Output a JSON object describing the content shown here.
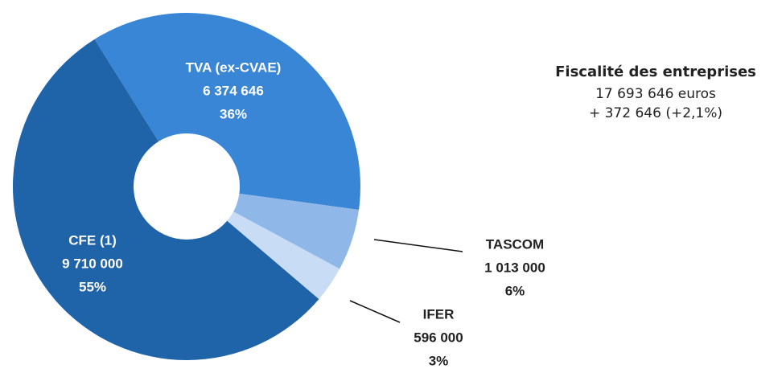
{
  "chart_data": {
    "type": "pie",
    "donut": true,
    "categories": [
      "TVA (ex-CVAE)",
      "TASCOM",
      "IFER",
      "CFE (1)"
    ],
    "values": [
      6374646,
      1013000,
      596000,
      9710000
    ],
    "value_labels": [
      "6 374 646",
      "1 013 000",
      "596 000",
      "9 710 000"
    ],
    "percents": [
      36,
      6,
      3,
      55
    ],
    "percent_labels": [
      "36%",
      "6%",
      "3%",
      "55%"
    ],
    "colors": [
      "#3a86d6",
      "#8fb8e8",
      "#c8dcf5",
      "#1f63a8"
    ],
    "annotations": [
      "Fiscalité des entreprises",
      "17 693 646 euros",
      "+ 372 646 (+2,1%)"
    ]
  }
}
